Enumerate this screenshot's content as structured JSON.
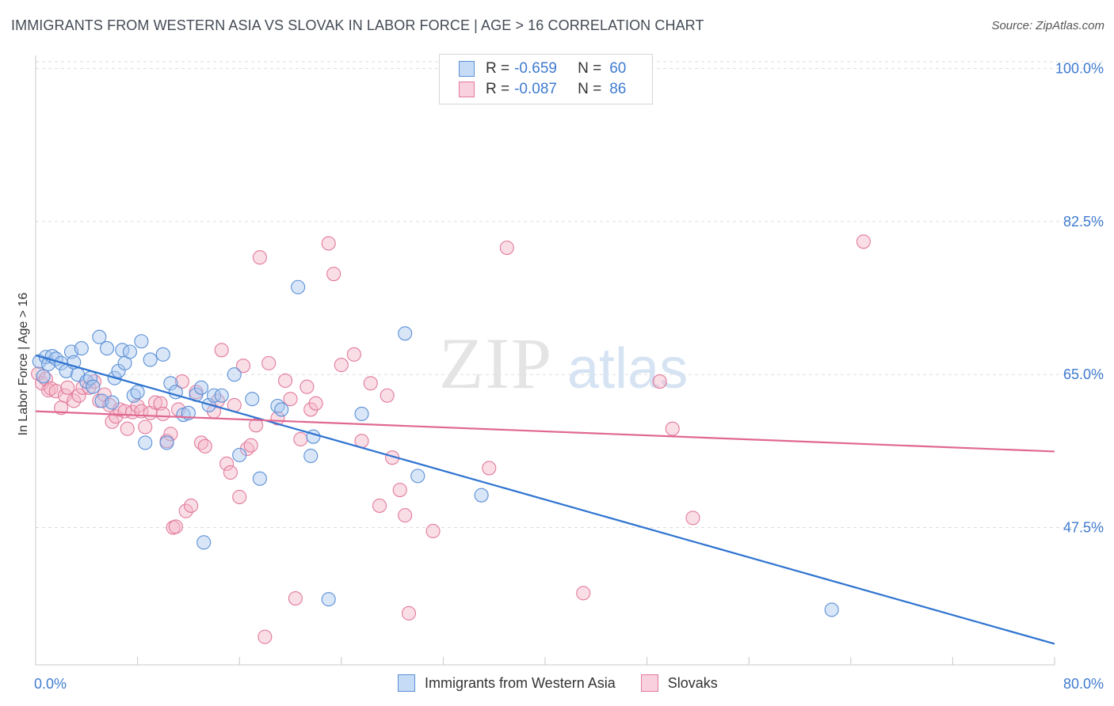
{
  "header": {
    "title": "IMMIGRANTS FROM WESTERN ASIA VS SLOVAK IN LABOR FORCE | AGE > 16 CORRELATION CHART",
    "source": "Source: ZipAtlas.com"
  },
  "watermark": {
    "zip": "ZIP",
    "atlas": "atlas"
  },
  "legend": {
    "r_label": "R =",
    "n_label": "N =",
    "series": [
      {
        "name": "Immigrants from Western Asia",
        "r": "-0.659",
        "n": "60"
      },
      {
        "name": "Slovaks",
        "r": "-0.087",
        "n": "86"
      }
    ]
  },
  "colors": {
    "blue_fill": "#a8c8f0",
    "blue_stroke": "#5b8fd6",
    "blue_line": "#2f74d0",
    "pink_fill": "#f5b5c8",
    "pink_stroke": "#e27a9c",
    "pink_line": "#e06890",
    "tick_text": "#3f7bd0",
    "grid": "#dddddd"
  },
  "chart_data": {
    "type": "scatter",
    "title": "IMMIGRANTS FROM WESTERN ASIA VS SLOVAK IN LABOR FORCE | AGE > 16 CORRELATION CHART",
    "xlabel": "",
    "ylabel": "In Labor Force | Age > 16",
    "xlim": [
      0,
      80
    ],
    "ylim": [
      31.8,
      101.5
    ],
    "x_tick_labels": [
      "0.0%",
      "80.0%"
    ],
    "y_ticks": [
      47.5,
      65.0,
      82.5,
      100.0
    ],
    "y_tick_labels": [
      "47.5%",
      "65.0%",
      "82.5%",
      "100.0%"
    ],
    "grid": true,
    "series": [
      {
        "name": "Immigrants from Western Asia",
        "trend": {
          "x": [
            0,
            80
          ],
          "y": [
            67.2,
            34.2
          ]
        },
        "points": [
          [
            0.3,
            66.5
          ],
          [
            0.6,
            64.8
          ],
          [
            0.8,
            67.0
          ],
          [
            1.0,
            66.2
          ],
          [
            1.3,
            67.1
          ],
          [
            1.6,
            66.8
          ],
          [
            2.0,
            66.3
          ],
          [
            2.4,
            65.4
          ],
          [
            2.8,
            67.6
          ],
          [
            3.0,
            66.4
          ],
          [
            3.3,
            65.0
          ],
          [
            3.6,
            68.0
          ],
          [
            4.0,
            64.2
          ],
          [
            4.3,
            64.6
          ],
          [
            4.5,
            63.6
          ],
          [
            5.0,
            69.3
          ],
          [
            5.2,
            62.0
          ],
          [
            5.6,
            68.0
          ],
          [
            6.0,
            61.8
          ],
          [
            6.2,
            64.6
          ],
          [
            6.5,
            65.4
          ],
          [
            6.8,
            67.8
          ],
          [
            7.0,
            66.3
          ],
          [
            7.4,
            67.6
          ],
          [
            7.7,
            62.6
          ],
          [
            8.0,
            63.0
          ],
          [
            8.3,
            68.8
          ],
          [
            8.6,
            57.2
          ],
          [
            9.0,
            66.7
          ],
          [
            10.0,
            67.3
          ],
          [
            10.3,
            57.2
          ],
          [
            10.6,
            64.0
          ],
          [
            11.0,
            63.0
          ],
          [
            11.6,
            60.4
          ],
          [
            12.0,
            60.6
          ],
          [
            12.6,
            62.7
          ],
          [
            13.0,
            63.5
          ],
          [
            13.2,
            45.8
          ],
          [
            13.6,
            61.5
          ],
          [
            14.0,
            62.6
          ],
          [
            14.6,
            62.6
          ],
          [
            15.6,
            65.0
          ],
          [
            16.0,
            55.8
          ],
          [
            17.0,
            62.2
          ],
          [
            17.6,
            53.1
          ],
          [
            19.0,
            61.4
          ],
          [
            19.3,
            61.0
          ],
          [
            20.6,
            75.0
          ],
          [
            21.6,
            55.7
          ],
          [
            21.8,
            57.9
          ],
          [
            23.0,
            39.3
          ],
          [
            25.6,
            60.5
          ],
          [
            29.0,
            69.7
          ],
          [
            30.0,
            53.4
          ],
          [
            35.0,
            51.2
          ],
          [
            62.5,
            38.1
          ]
        ]
      },
      {
        "name": "Slovaks",
        "trend": {
          "x": [
            0,
            80
          ],
          "y": [
            60.8,
            56.2
          ]
        },
        "points": [
          [
            0.2,
            65.1
          ],
          [
            0.5,
            64.0
          ],
          [
            0.8,
            64.5
          ],
          [
            1.0,
            63.2
          ],
          [
            1.2,
            63.4
          ],
          [
            1.6,
            63.1
          ],
          [
            2.0,
            61.2
          ],
          [
            2.3,
            62.6
          ],
          [
            2.5,
            63.5
          ],
          [
            3.0,
            62.0
          ],
          [
            3.4,
            62.6
          ],
          [
            3.7,
            63.5
          ],
          [
            4.2,
            63.5
          ],
          [
            4.6,
            64.2
          ],
          [
            5.0,
            62.0
          ],
          [
            5.4,
            62.7
          ],
          [
            5.8,
            61.5
          ],
          [
            6.0,
            59.6
          ],
          [
            6.3,
            60.2
          ],
          [
            6.6,
            61.0
          ],
          [
            7.0,
            60.8
          ],
          [
            7.2,
            58.8
          ],
          [
            7.6,
            60.7
          ],
          [
            8.0,
            61.4
          ],
          [
            8.3,
            60.8
          ],
          [
            8.6,
            59.0
          ],
          [
            9.0,
            60.6
          ],
          [
            9.4,
            61.8
          ],
          [
            9.8,
            61.7
          ],
          [
            10.0,
            60.5
          ],
          [
            10.3,
            57.4
          ],
          [
            10.6,
            58.2
          ],
          [
            10.8,
            47.5
          ],
          [
            11.0,
            47.6
          ],
          [
            11.2,
            61.0
          ],
          [
            11.5,
            64.2
          ],
          [
            11.8,
            49.4
          ],
          [
            12.2,
            50.0
          ],
          [
            12.6,
            63.0
          ],
          [
            13.0,
            57.2
          ],
          [
            13.3,
            56.8
          ],
          [
            14.0,
            60.8
          ],
          [
            14.3,
            62.0
          ],
          [
            14.6,
            67.8
          ],
          [
            15.0,
            54.8
          ],
          [
            15.3,
            53.8
          ],
          [
            15.6,
            61.5
          ],
          [
            16.0,
            51.0
          ],
          [
            16.3,
            66.0
          ],
          [
            16.6,
            56.5
          ],
          [
            16.9,
            56.9
          ],
          [
            17.3,
            59.2
          ],
          [
            17.6,
            78.4
          ],
          [
            18.0,
            35.0
          ],
          [
            18.3,
            66.3
          ],
          [
            19.0,
            60.0
          ],
          [
            19.6,
            64.3
          ],
          [
            20.0,
            62.2
          ],
          [
            20.4,
            39.4
          ],
          [
            20.8,
            57.6
          ],
          [
            21.3,
            63.6
          ],
          [
            21.6,
            61.0
          ],
          [
            22.0,
            61.7
          ],
          [
            23.0,
            80.0
          ],
          [
            23.4,
            76.5
          ],
          [
            24.0,
            66.1
          ],
          [
            25.0,
            67.3
          ],
          [
            25.6,
            57.4
          ],
          [
            26.3,
            64.0
          ],
          [
            27.0,
            50.0
          ],
          [
            27.6,
            62.6
          ],
          [
            28.0,
            55.5
          ],
          [
            28.6,
            51.8
          ],
          [
            29.0,
            48.9
          ],
          [
            29.3,
            37.7
          ],
          [
            31.2,
            47.1
          ],
          [
            35.6,
            54.3
          ],
          [
            37.0,
            79.5
          ],
          [
            43.0,
            40.0
          ],
          [
            49.0,
            64.2
          ],
          [
            50.0,
            58.8
          ],
          [
            51.6,
            48.6
          ],
          [
            65.0,
            80.2
          ]
        ]
      }
    ]
  }
}
